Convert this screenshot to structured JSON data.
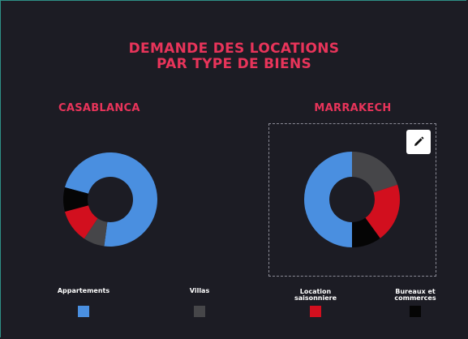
{
  "title_line1": "DEMANDE DES LOCATIONS",
  "title_line2": "PAR TYPE DE BIENS",
  "colors": {
    "accent": "#e8345a",
    "Appartements": "#4a8fe0",
    "Villas": "#464649",
    "Location saisonniere": "#d20f1e",
    "Bureaux et commerces": "#050505"
  },
  "edit_icon": "pencil-icon",
  "chart_data": [
    {
      "type": "pie",
      "title": "CASABLANCA",
      "donut": true,
      "categories": [
        "Appartements",
        "Villas",
        "Location saisonniere",
        "Bureaux et commerces"
      ],
      "values": [
        70,
        7,
        11,
        8
      ]
    },
    {
      "type": "pie",
      "title": "MARRAKECH",
      "donut": true,
      "categories": [
        "Appartements",
        "Villas",
        "Location saisonniere",
        "Bureaux et commerces"
      ],
      "values": [
        50,
        20,
        20,
        10
      ]
    }
  ],
  "legend": [
    {
      "line1": "Appartements",
      "line2": ""
    },
    {
      "line1": "Villas",
      "line2": ""
    },
    {
      "line1": "Location",
      "line2": "saisonniere"
    },
    {
      "line1": "Bureaux et",
      "line2": "commerces"
    }
  ]
}
